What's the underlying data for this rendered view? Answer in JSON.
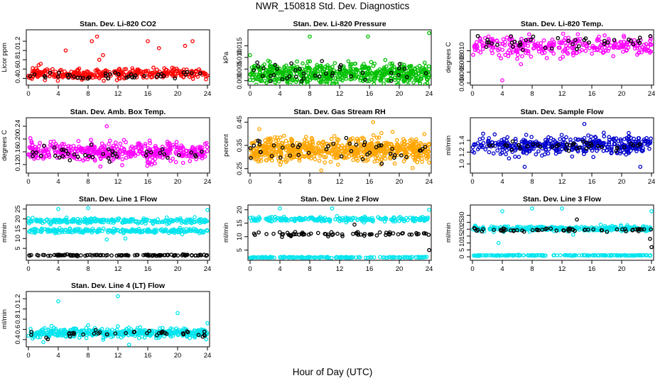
{
  "page": {
    "title": "NWR_150818 Std. Dev. Diagnostics",
    "xlabel": "Hour of Day (UTC)"
  },
  "chart_data": [
    {
      "type": "scatter",
      "title": "Stan. Dev. Li-820 CO2",
      "ylabel": "Licor ppm",
      "xlim": [
        0,
        24
      ],
      "ylim": [
        0.3,
        1.4
      ],
      "xticks": [
        "0",
        "4",
        "8",
        "12",
        "16",
        "20",
        "24"
      ],
      "yticks": [
        "0.4",
        "0.6",
        "0.8",
        "1.0",
        "1.2"
      ],
      "series": [
        {
          "color": "#ff0000",
          "n": 320,
          "x_range": [
            0,
            24
          ],
          "y_center": 0.5,
          "y_spread": 0.08,
          "outliers": [
            [
              5,
              1.0
            ],
            [
              8.5,
              1.2
            ],
            [
              9.2,
              1.3
            ],
            [
              9.5,
              0.8
            ],
            [
              10,
              0.9
            ],
            [
              16,
              1.2
            ],
            [
              17.5,
              1.05
            ],
            [
              21,
              1.1
            ],
            [
              22,
              1.2
            ]
          ]
        },
        {
          "color": "#000000",
          "n": 40,
          "x_range": [
            0,
            24
          ],
          "y_center": 0.45,
          "y_spread": 0.05
        }
      ]
    },
    {
      "type": "scatter",
      "title": "Stan. Dev. Li-820 Pressure",
      "ylabel": "kPa",
      "xlim": [
        0,
        24
      ],
      "ylim": [
        -0.001,
        0.021
      ],
      "xticks": [
        "0",
        "4",
        "8",
        "12",
        "16",
        "20",
        "24"
      ],
      "yticks": [
        "0.000",
        "0.005",
        "0.010",
        "0.015"
      ],
      "series": [
        {
          "color": "#00c000",
          "n": 600,
          "x_range": [
            0,
            24
          ],
          "y_center": 0.003,
          "y_spread": 0.003,
          "outliers": [
            [
              8,
              0.019
            ],
            [
              15.8,
              0.019
            ],
            [
              24,
              0.0205
            ],
            [
              0,
              0.011
            ]
          ]
        },
        {
          "color": "#000000",
          "n": 40,
          "x_range": [
            0,
            24
          ],
          "y_center": 0.003,
          "y_spread": 0.003
        }
      ]
    },
    {
      "type": "scatter",
      "title": "Stan. Dev. Li-820 Temp.",
      "ylabel": "degrees C",
      "xlim": [
        0,
        24
      ],
      "ylim": [
        0.004,
        0.0135
      ],
      "xticks": [
        "0",
        "4",
        "8",
        "12",
        "16",
        "20",
        "24"
      ],
      "yticks": [
        "0.004",
        "0.006",
        "0.008",
        "0.010"
      ],
      "series": [
        {
          "color": "#ff00ff",
          "n": 300,
          "x_range": [
            0,
            24
          ],
          "y_center": 0.011,
          "y_spread": 0.0012,
          "outliers": [
            [
              4,
              0.0045
            ],
            [
              6.5,
              0.0075
            ],
            [
              6,
              0.0085
            ]
          ]
        },
        {
          "color": "#000000",
          "n": 40,
          "x_range": [
            0,
            24
          ],
          "y_center": 0.0115,
          "y_spread": 0.0008
        }
      ]
    },
    {
      "type": "scatter",
      "title": "Stan. Dev. Amb. Box Temp.",
      "ylabel": "degrees C",
      "xlim": [
        0,
        24
      ],
      "ylim": [
        0.1,
        0.26
      ],
      "xticks": [
        "0",
        "4",
        "8",
        "12",
        "16",
        "20",
        "24"
      ],
      "yticks": [
        "0.12",
        "0.16",
        "0.20",
        "0.24"
      ],
      "series": [
        {
          "color": "#ff00ff",
          "n": 450,
          "x_range": [
            0,
            24
          ],
          "y_center": 0.16,
          "y_spread": 0.02,
          "outliers": [
            [
              10.5,
              0.24
            ]
          ]
        },
        {
          "color": "#000000",
          "n": 40,
          "x_range": [
            0,
            24
          ],
          "y_center": 0.15,
          "y_spread": 0.015
        }
      ]
    },
    {
      "type": "scatter",
      "title": "Stan. Dev. Gas Stream RH",
      "ylabel": "percent",
      "xlim": [
        0,
        24
      ],
      "ylim": [
        0.24,
        0.46
      ],
      "xticks": [
        "0",
        "4",
        "8",
        "12",
        "16",
        "20",
        "24"
      ],
      "yticks": [
        "0.25",
        "0.35",
        "0.45"
      ],
      "series": [
        {
          "color": "#ffa500",
          "n": 700,
          "x_range": [
            0,
            24
          ],
          "y_center": 0.33,
          "y_spread": 0.035,
          "outliers": [
            [
              16.5,
              0.45
            ]
          ]
        },
        {
          "color": "#000000",
          "n": 45,
          "x_range": [
            0,
            24
          ],
          "y_center": 0.33,
          "y_spread": 0.035
        }
      ]
    },
    {
      "type": "scatter",
      "title": "Stan. Dev. Sample Flow",
      "ylabel": "ml/min",
      "xlim": [
        0,
        24
      ],
      "ylim": [
        0.88,
        1.75
      ],
      "xticks": [
        "0",
        "4",
        "8",
        "12",
        "16",
        "20",
        "24"
      ],
      "yticks": [
        "1.0",
        "1.2",
        "1.4"
      ],
      "series": [
        {
          "color": "#0000cc",
          "n": 420,
          "x_range": [
            0,
            24
          ],
          "y_center": 1.32,
          "y_spread": 0.1,
          "outliers": [
            [
              15,
              1.68
            ],
            [
              7,
              0.95
            ],
            [
              22.5,
              0.95
            ]
          ]
        },
        {
          "color": "#000000",
          "n": 40,
          "x_range": [
            0,
            24
          ],
          "y_center": 1.3,
          "y_spread": 0.06
        }
      ]
    },
    {
      "type": "scatter",
      "title": "Stan. Dev. Line 1 Flow",
      "ylabel": "ml/min",
      "xlim": [
        0,
        24
      ],
      "ylim": [
        0,
        26
      ],
      "xticks": [
        "0",
        "4",
        "8",
        "12",
        "16",
        "20",
        "24"
      ],
      "yticks": [
        "5",
        "10",
        "15",
        "20",
        "25"
      ],
      "series": [
        {
          "color": "#00e5ee",
          "n": 250,
          "x_range": [
            0,
            24
          ],
          "y_center": 19,
          "y_spread": 0.8
        },
        {
          "color": "#00e5ee",
          "n": 250,
          "x_range": [
            0,
            24
          ],
          "y_center": 14,
          "y_spread": 0.8,
          "outliers": [
            [
              4,
              25
            ],
            [
              8,
              25.5
            ],
            [
              24,
              24.5
            ],
            [
              10.5,
              9.5
            ],
            [
              13,
              10
            ]
          ]
        },
        {
          "color": "#000000",
          "n": 120,
          "x_range": [
            0,
            24
          ],
          "y_center": 1.5,
          "y_spread": 0.25
        }
      ]
    },
    {
      "type": "scatter",
      "title": "Stan. Dev. Line 2 Flow",
      "ylabel": "ml/min",
      "xlim": [
        0,
        24
      ],
      "ylim": [
        2,
        21
      ],
      "xticks": [
        "0",
        "4",
        "8",
        "12",
        "16",
        "20",
        "24"
      ],
      "yticks": [
        "5",
        "10",
        "15",
        "20"
      ],
      "series": [
        {
          "color": "#00e5ee",
          "n": 220,
          "x_range": [
            0,
            24
          ],
          "y_center": 16.5,
          "y_spread": 0.6,
          "outliers": [
            [
              11,
              20.5
            ],
            [
              24,
              20
            ],
            [
              4,
              20.5
            ]
          ]
        },
        {
          "color": "#00e5ee",
          "n": 160,
          "x_range": [
            0,
            24
          ],
          "y_center": 2.3,
          "y_spread": 0.15
        },
        {
          "color": "#000000",
          "n": 70,
          "x_range": [
            0,
            24
          ],
          "y_center": 11,
          "y_spread": 0.5,
          "outliers": [
            [
              24,
              5
            ],
            [
              14,
              14.5
            ]
          ]
        }
      ]
    },
    {
      "type": "scatter",
      "title": "Stan. Dev. Line 3 Flow",
      "ylabel": "ml/min",
      "xlim": [
        0,
        24
      ],
      "ylim": [
        -1,
        36
      ],
      "xticks": [
        "0",
        "4",
        "8",
        "12",
        "16",
        "20",
        "24"
      ],
      "yticks": [
        "0",
        "5",
        "10",
        "15",
        "20",
        "25",
        "30"
      ],
      "series": [
        {
          "color": "#00e5ee",
          "n": 320,
          "x_range": [
            0,
            24
          ],
          "y_center": 20.5,
          "y_spread": 1.2,
          "outliers": [
            [
              4,
              33
            ],
            [
              8,
              35
            ],
            [
              24,
              33
            ],
            [
              12,
              35
            ],
            [
              3.5,
              10
            ],
            [
              13.5,
              16
            ]
          ]
        },
        {
          "color": "#00e5ee",
          "n": 180,
          "x_range": [
            0,
            24
          ],
          "y_center": 1,
          "y_spread": 0.2
        },
        {
          "color": "#000000",
          "n": 60,
          "x_range": [
            0,
            24
          ],
          "y_center": 19.5,
          "y_spread": 0.8,
          "outliers": [
            [
              24,
              7
            ],
            [
              23.8,
              13
            ],
            [
              14,
              27
            ]
          ]
        }
      ]
    },
    {
      "type": "scatter",
      "title": "Stan. Dev. Line 4 (LT) Flow",
      "ylabel": "ml/min",
      "xlim": [
        0,
        24
      ],
      "ylim": [
        0.3,
        1.3
      ],
      "xticks": [
        "0",
        "4",
        "8",
        "12",
        "16",
        "20",
        "24"
      ],
      "yticks": [
        "0.4",
        "0.6",
        "0.8",
        "1.0",
        "1.2"
      ],
      "series": [
        {
          "color": "#00e5ee",
          "n": 420,
          "x_range": [
            0,
            24
          ],
          "y_center": 0.53,
          "y_spread": 0.06,
          "outliers": [
            [
              4,
              1.15
            ],
            [
              12,
              1.25
            ],
            [
              8,
              0.68
            ],
            [
              20,
              0.92
            ],
            [
              24,
              0.72
            ],
            [
              2,
              0.35
            ],
            [
              13.5,
              0.3
            ]
          ]
        },
        {
          "color": "#000000",
          "n": 40,
          "x_range": [
            0,
            24
          ],
          "y_center": 0.52,
          "y_spread": 0.05
        }
      ]
    }
  ]
}
